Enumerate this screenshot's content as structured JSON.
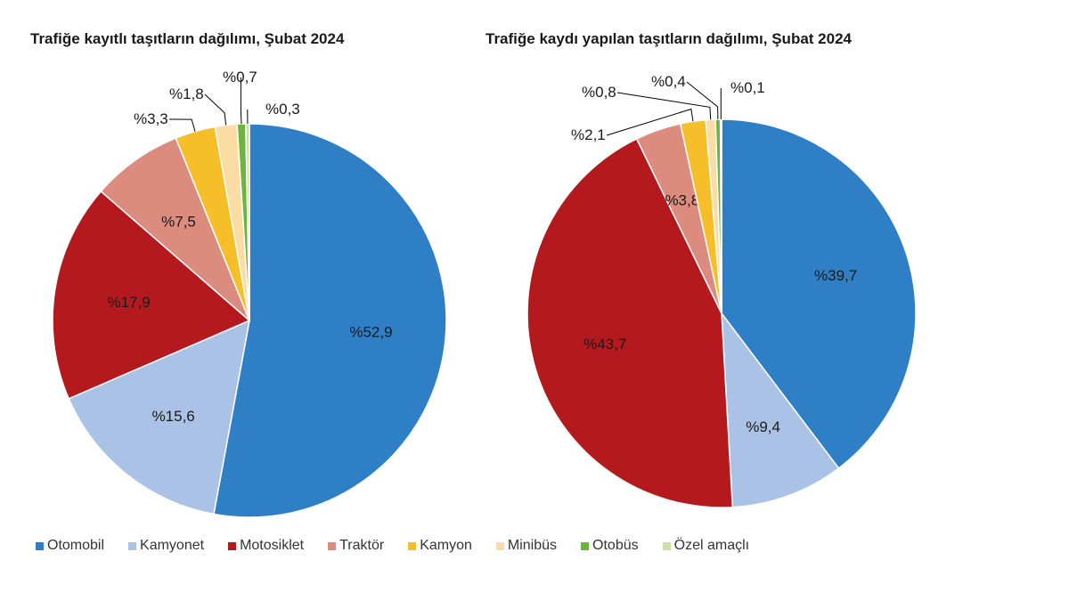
{
  "chart_data": [
    {
      "type": "pie",
      "title": "Trafiğe kayıtlı taşıtların dağılımı, Şubat 2024",
      "slices": [
        {
          "name": "Otomobil",
          "value": 52.9,
          "label": "%52,9",
          "color": "#2e7fc6"
        },
        {
          "name": "Kamyonet",
          "value": 15.6,
          "label": "%15,6",
          "color": "#a9c2e5"
        },
        {
          "name": "Motosiklet",
          "value": 17.9,
          "label": "%17,9",
          "color": "#b41a1d"
        },
        {
          "name": "Traktör",
          "value": 7.5,
          "label": "%7,5",
          "color": "#dc8c7e"
        },
        {
          "name": "Kamyon",
          "value": 3.3,
          "label": "%3,3",
          "color": "#f6bf2a"
        },
        {
          "name": "Minibüs",
          "value": 1.8,
          "label": "%1,8",
          "color": "#fbdca2"
        },
        {
          "name": "Otobüs",
          "value": 0.7,
          "label": "%0,7",
          "color": "#6db33f"
        },
        {
          "name": "Özel amaçlı",
          "value": 0.3,
          "label": "%0,3",
          "color": "#c8e3a4"
        }
      ]
    },
    {
      "type": "pie",
      "title": "Trafiğe kaydı yapılan taşıtların dağılımı, Şubat 2024",
      "slices": [
        {
          "name": "Otomobil",
          "value": 39.7,
          "label": "%39,7",
          "color": "#2e7fc6"
        },
        {
          "name": "Kamyonet",
          "value": 9.4,
          "label": "%9,4",
          "color": "#a9c2e5"
        },
        {
          "name": "Motosiklet",
          "value": 43.7,
          "label": "%43,7",
          "color": "#b41a1d"
        },
        {
          "name": "Traktör",
          "value": 3.8,
          "label": "%3,8",
          "color": "#dc8c7e"
        },
        {
          "name": "Kamyon",
          "value": 2.1,
          "label": "%2,1",
          "color": "#f6bf2a"
        },
        {
          "name": "Minibüs",
          "value": 0.8,
          "label": "%0,8",
          "color": "#fbdca2"
        },
        {
          "name": "Otobüs",
          "value": 0.4,
          "label": "%0,4",
          "color": "#6db33f"
        },
        {
          "name": "Özel amaçlı",
          "value": 0.1,
          "label": "%0,1",
          "color": "#c8e3a4"
        }
      ]
    }
  ],
  "legend": [
    {
      "label": "Otomobil",
      "color": "#2e7fc6"
    },
    {
      "label": "Kamyonet",
      "color": "#a9c2e5"
    },
    {
      "label": "Motosiklet",
      "color": "#b41a1d"
    },
    {
      "label": "Traktör",
      "color": "#dc8c7e"
    },
    {
      "label": "Kamyon",
      "color": "#f6bf2a"
    },
    {
      "label": "Minibüs",
      "color": "#fbdca2"
    },
    {
      "label": "Otobüs",
      "color": "#6db33f"
    },
    {
      "label": "Özel amaçlı",
      "color": "#c8e3a4"
    }
  ]
}
